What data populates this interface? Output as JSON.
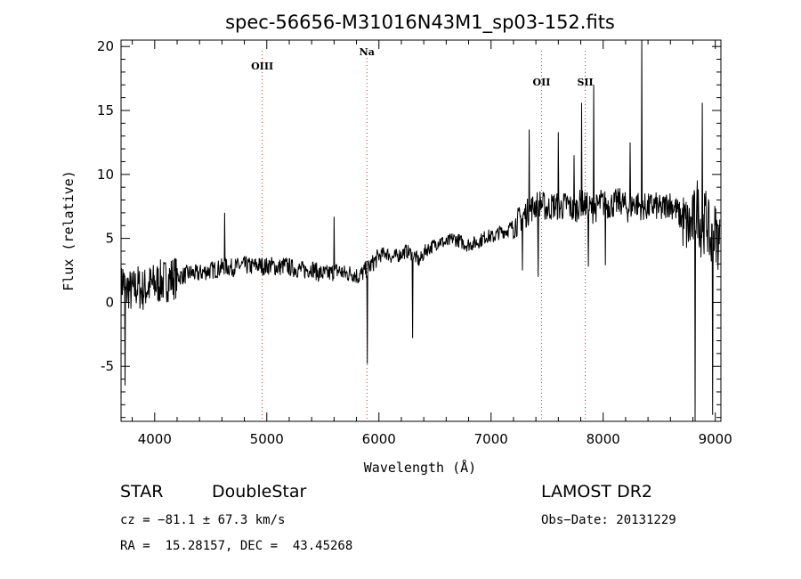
{
  "chart_data": {
    "type": "line",
    "title": "spec-56656-M31016N43M1_sp03-152.fits",
    "xlabel": "Wavelength (Å)",
    "ylabel": "Flux (relative)",
    "xlim": [
      3700,
      9050
    ],
    "ylim": [
      -9.3,
      20.5
    ],
    "xticks": [
      4000,
      5000,
      6000,
      7000,
      8000,
      9000
    ],
    "yticks": [
      -5,
      0,
      5,
      10,
      15,
      20
    ],
    "grid": false,
    "legend": "none",
    "line_color": "#000000",
    "marker_color": "#cc3333",
    "spectral_lines": [
      {
        "label": "OIII",
        "wavelength": 4959
      },
      {
        "label": "Na",
        "wavelength": 5893
      },
      {
        "label": "OII",
        "wavelength": 7450
      },
      {
        "label": "SII",
        "wavelength": 7840
      }
    ],
    "series": [
      {
        "x": [
          3700,
          3720,
          3740,
          3760,
          3790,
          3820,
          3850,
          3880,
          3920,
          3960,
          4000,
          4050,
          4100,
          4150,
          4200,
          4260,
          4320,
          4380,
          4440,
          4500,
          4560,
          4620,
          4680,
          4740,
          4800,
          4860,
          4920,
          4980,
          5040,
          5100,
          5160,
          5220,
          5280,
          5340,
          5400,
          5460,
          5520,
          5580,
          5640,
          5700,
          5760,
          5820,
          5880,
          5940,
          6000,
          6060,
          6120,
          6180,
          6240,
          6300,
          6360,
          6420,
          6480,
          6540,
          6600,
          6660,
          6720,
          6780,
          6840,
          6900,
          6960,
          7020,
          7080,
          7140,
          7200,
          7260,
          7320,
          7380,
          7440,
          7500,
          7560,
          7620,
          7680,
          7740,
          7800,
          7860,
          7920,
          7980,
          8040,
          8100,
          8160,
          8220,
          8280,
          8340,
          8400,
          8460,
          8520,
          8580,
          8640,
          8700,
          8760,
          8800,
          8840,
          8880,
          8920,
          8960,
          9000,
          9040
        ],
        "y": [
          1.0,
          2.0,
          0.5,
          1.2,
          0.8,
          1.0,
          1.3,
          0.9,
          1.1,
          1.3,
          1.4,
          1.6,
          1.7,
          1.9,
          2.0,
          2.1,
          2.3,
          2.2,
          2.4,
          2.5,
          2.6,
          2.8,
          2.7,
          2.8,
          2.9,
          2.8,
          2.9,
          2.8,
          2.9,
          2.7,
          2.9,
          2.7,
          2.6,
          2.5,
          2.7,
          2.3,
          2.2,
          2.3,
          2.5,
          2.2,
          2.3,
          2.0,
          2.5,
          3.0,
          3.6,
          3.9,
          3.5,
          3.7,
          4.0,
          3.8,
          3.2,
          4.1,
          4.4,
          4.8,
          4.6,
          5.0,
          4.8,
          4.5,
          4.6,
          4.8,
          5.2,
          5.1,
          5.5,
          5.6,
          6.0,
          6.5,
          7.0,
          7.5,
          7.8,
          7.3,
          7.6,
          7.4,
          7.7,
          7.1,
          7.8,
          7.5,
          7.2,
          7.8,
          7.6,
          7.7,
          7.9,
          7.3,
          7.8,
          7.5,
          7.4,
          7.6,
          7.2,
          7.8,
          7.4,
          6.5,
          5.8,
          6.2,
          7.5,
          5.5,
          6.8,
          4.5,
          5.6,
          4.5
        ]
      }
    ],
    "features": [
      {
        "x": 3735,
        "y": -6.5
      },
      {
        "x": 4625,
        "y": 7.0
      },
      {
        "x": 5600,
        "y": 6.7
      },
      {
        "x": 5895,
        "y": -4.8
      },
      {
        "x": 6300,
        "y": -2.8
      },
      {
        "x": 7280,
        "y": 2.5
      },
      {
        "x": 7340,
        "y": 13.5
      },
      {
        "x": 7420,
        "y": 2.0
      },
      {
        "x": 7600,
        "y": 13.3
      },
      {
        "x": 7740,
        "y": 11.5
      },
      {
        "x": 7810,
        "y": 15.6
      },
      {
        "x": 7870,
        "y": 2.8
      },
      {
        "x": 7915,
        "y": 17.0
      },
      {
        "x": 8020,
        "y": 2.9
      },
      {
        "x": 8240,
        "y": 12.5
      },
      {
        "x": 8345,
        "y": 20.5
      },
      {
        "x": 8820,
        "y": -9.3
      },
      {
        "x": 8885,
        "y": 15.6
      },
      {
        "x": 8975,
        "y": -8.8
      }
    ]
  },
  "info": {
    "object_class": "STAR",
    "subclass": "DoubleStar",
    "survey": "LAMOST DR2",
    "redshift": "cz = −81.1 ± 67.3 km/s",
    "obs_date": "Obs−Date: 20131229",
    "coords": "RA =  15.28157, DEC =  43.45268"
  }
}
